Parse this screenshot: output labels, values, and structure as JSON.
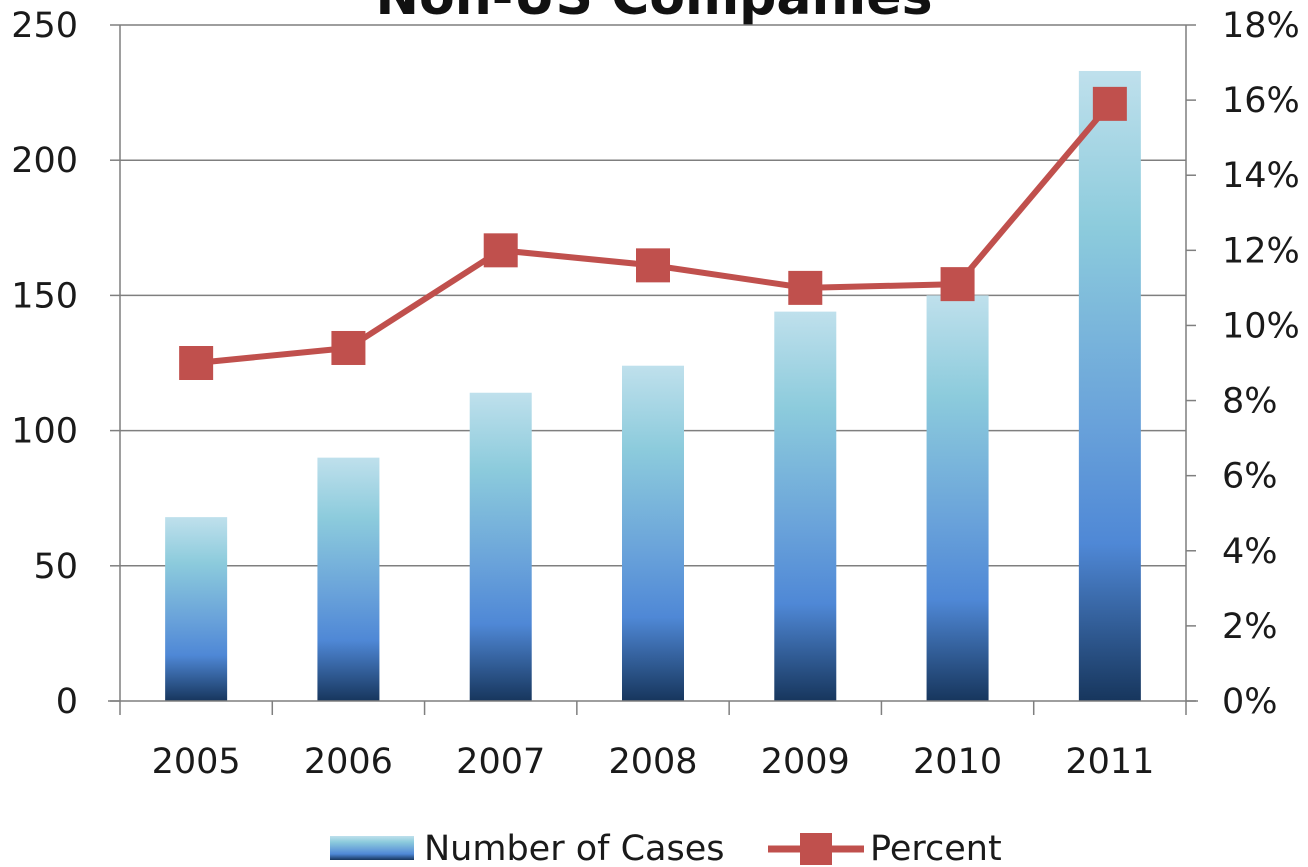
{
  "chart_data": {
    "type": "bar",
    "title": "Non-US Companies",
    "categories": [
      "2005",
      "2006",
      "2007",
      "2008",
      "2009",
      "2010",
      "2011"
    ],
    "series": [
      {
        "name": "Number of Cases",
        "type": "bar",
        "axis": "left",
        "values": [
          68,
          90,
          114,
          124,
          144,
          150,
          233
        ]
      },
      {
        "name": "Percent",
        "type": "line",
        "axis": "right",
        "values": [
          0.09,
          0.094,
          0.12,
          0.116,
          0.11,
          0.111,
          0.159
        ]
      }
    ],
    "y_left": {
      "ylim": [
        0,
        250
      ],
      "ticks": [
        0,
        50,
        100,
        150,
        200,
        250
      ],
      "tick_labels": [
        "0",
        "50",
        "100",
        "150",
        "200",
        "250"
      ]
    },
    "y_right": {
      "ylim": [
        0,
        0.18
      ],
      "ticks": [
        0,
        0.02,
        0.04,
        0.06,
        0.08,
        0.1,
        0.12,
        0.14,
        0.16,
        0.18
      ],
      "tick_labels": [
        "0%",
        "2%",
        "4%",
        "6%",
        "8%",
        "10%",
        "12%",
        "14%",
        "16%",
        "18%"
      ]
    },
    "grid": true,
    "legend": "bottom",
    "colors": {
      "bar_top": "#bfe0ec",
      "bar_mid": "#5a93d9",
      "bar_bottom": "#17365d",
      "line": "#c0504d",
      "grid": "#7f7f7f",
      "axis": "#7f7f7f"
    }
  }
}
